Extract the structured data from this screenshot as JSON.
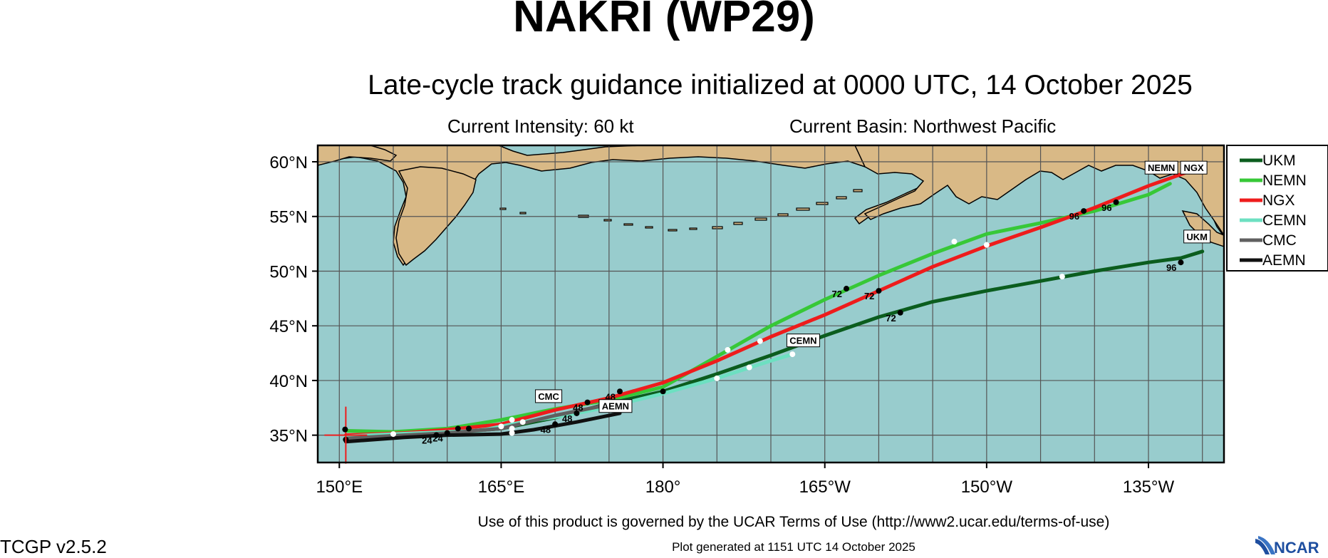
{
  "header": {
    "title": "NAKRI (WP29)",
    "subtitle": "Late-cycle track guidance initialized at 0000 UTC, 14 October 2025",
    "intensity": "Current Intensity: 60 kt",
    "basin": "Current Basin: Northwest Pacific"
  },
  "footer": {
    "terms": "Use of this product is governed by the UCAR Terms of Use (http://www2.ucar.edu/terms-of-use)",
    "generated": "Plot generated at 1151 UTC   14 October 2025",
    "version": "TCGP v2.5.2",
    "logo_text": "NCAR"
  },
  "colors": {
    "ocean": "#98cccd",
    "land": "#d9b986",
    "grid": "#555555"
  },
  "chart_data": {
    "type": "map",
    "lon_range": [
      148,
      232
    ],
    "lat_range": [
      32.5,
      61.5
    ],
    "lat_ticks": [
      {
        "value": 35,
        "label": "35°N"
      },
      {
        "value": 40,
        "label": "40°N"
      },
      {
        "value": 45,
        "label": "45°N"
      },
      {
        "value": 50,
        "label": "50°N"
      },
      {
        "value": 55,
        "label": "55°N"
      },
      {
        "value": 60,
        "label": "60°N"
      }
    ],
    "lon_ticks": [
      {
        "value": 150,
        "label": "150°E"
      },
      {
        "value": 165,
        "label": "165°E"
      },
      {
        "value": 180,
        "label": "180°"
      },
      {
        "value": 195,
        "label": "165°W"
      },
      {
        "value": 210,
        "label": "150°W"
      },
      {
        "value": 225,
        "label": "135°W"
      }
    ],
    "grid": true,
    "current_position": {
      "lon": 150.6,
      "lat": 35.0
    },
    "series": [
      {
        "name": "UKM",
        "color": "#0b5d1e",
        "points": [
          [
            150.6,
            34.6
          ],
          [
            156,
            34.9
          ],
          [
            160,
            35.2
          ],
          [
            165,
            35.6
          ],
          [
            170,
            36.6
          ],
          [
            175,
            37.9
          ],
          [
            180,
            39.0
          ],
          [
            185,
            40.6
          ],
          [
            190,
            42.3
          ],
          [
            195,
            44.1
          ],
          [
            200,
            45.8
          ],
          [
            205,
            47.2
          ],
          [
            210,
            48.2
          ],
          [
            215,
            49.1
          ],
          [
            220,
            50.0
          ],
          [
            225,
            50.8
          ],
          [
            228,
            51.2
          ],
          [
            230,
            51.8
          ]
        ],
        "markers": [
          {
            "lon": 150.6,
            "lat": 34.6,
            "style": "black"
          },
          {
            "lon": 160,
            "lat": 35.2,
            "style": "black",
            "label": "24"
          },
          {
            "lon": 166,
            "lat": 35.6,
            "style": "white"
          },
          {
            "lon": 180,
            "lat": 39.0,
            "style": "black"
          },
          {
            "lon": 188,
            "lat": 41.2,
            "style": "white"
          },
          {
            "lon": 192,
            "lat": 42.4,
            "style": "white"
          },
          {
            "lon": 202,
            "lat": 46.2,
            "style": "black",
            "label": "72"
          },
          {
            "lon": 217,
            "lat": 49.5,
            "style": "white"
          },
          {
            "lon": 228,
            "lat": 50.8,
            "style": "black",
            "label": "96"
          }
        ],
        "end_label": "UKM"
      },
      {
        "name": "NEMN",
        "color": "#37c837",
        "points": [
          [
            150.6,
            35.4
          ],
          [
            155,
            35.3
          ],
          [
            160,
            35.6
          ],
          [
            165,
            36.4
          ],
          [
            170,
            37.4
          ],
          [
            175,
            38.2
          ],
          [
            180,
            39.4
          ],
          [
            185,
            42.2
          ],
          [
            190,
            45.0
          ],
          [
            195,
            47.4
          ],
          [
            200,
            49.6
          ],
          [
            205,
            51.6
          ],
          [
            210,
            53.4
          ],
          [
            215,
            54.4
          ],
          [
            220,
            55.5
          ],
          [
            225,
            57.0
          ],
          [
            227,
            58.0
          ]
        ],
        "markers": [
          {
            "lon": 161,
            "lat": 35.6,
            "style": "black"
          },
          {
            "lon": 166,
            "lat": 36.4,
            "style": "white"
          },
          {
            "lon": 173,
            "lat": 38.0,
            "style": "black",
            "label": "48"
          },
          {
            "lon": 186,
            "lat": 42.8,
            "style": "white"
          },
          {
            "lon": 197,
            "lat": 48.4,
            "style": "black",
            "label": "72"
          },
          {
            "lon": 207,
            "lat": 52.7,
            "style": "white"
          },
          {
            "lon": 219,
            "lat": 55.5,
            "style": "black",
            "label": "96"
          }
        ],
        "end_label": "NEMN"
      },
      {
        "name": "NGX",
        "color": "#ee1c1c",
        "points": [
          [
            150.6,
            35.0
          ],
          [
            156,
            35.2
          ],
          [
            160,
            35.5
          ],
          [
            165,
            36.0
          ],
          [
            170,
            37.3
          ],
          [
            175,
            38.4
          ],
          [
            180,
            39.8
          ],
          [
            185,
            41.8
          ],
          [
            190,
            44.0
          ],
          [
            195,
            46.0
          ],
          [
            200,
            48.2
          ],
          [
            205,
            50.4
          ],
          [
            210,
            52.3
          ],
          [
            215,
            54.0
          ],
          [
            220,
            55.8
          ],
          [
            225,
            57.8
          ],
          [
            229,
            59.2
          ]
        ],
        "markers": [
          {
            "lon": 162,
            "lat": 35.6,
            "style": "black"
          },
          {
            "lon": 176,
            "lat": 39.0,
            "style": "black",
            "label": "48"
          },
          {
            "lon": 189,
            "lat": 43.6,
            "style": "white"
          },
          {
            "lon": 200,
            "lat": 48.2,
            "style": "black",
            "label": "72"
          },
          {
            "lon": 210,
            "lat": 52.4,
            "style": "white"
          },
          {
            "lon": 222,
            "lat": 56.3,
            "style": "black",
            "label": "96"
          }
        ],
        "end_label": "NGX"
      },
      {
        "name": "CEMN",
        "color": "#6de0c1",
        "points": [
          [
            150.6,
            34.9
          ],
          [
            155,
            35.1
          ],
          [
            160,
            35.3
          ],
          [
            163,
            35.4
          ],
          [
            167,
            36.2
          ],
          [
            171,
            36.8
          ],
          [
            175,
            37.6
          ],
          [
            180,
            38.8
          ],
          [
            185,
            40.2
          ],
          [
            190,
            41.8
          ],
          [
            192,
            42.4
          ]
        ],
        "markers": [
          {
            "lon": 155,
            "lat": 35.1,
            "style": "white"
          },
          {
            "lon": 167,
            "lat": 36.2,
            "style": "white"
          },
          {
            "lon": 185,
            "lat": 40.2,
            "style": "white"
          }
        ],
        "end_label": "CEMN"
      },
      {
        "name": "CMC",
        "color": "#606060",
        "points": [
          [
            150.6,
            34.7
          ],
          [
            156,
            35.0
          ],
          [
            160,
            35.2
          ],
          [
            165,
            35.6
          ],
          [
            170,
            36.8
          ],
          [
            175,
            37.8
          ]
        ],
        "markers": [
          {
            "lon": 165,
            "lat": 35.8,
            "style": "white"
          },
          {
            "lon": 172,
            "lat": 37.0,
            "style": "black",
            "label": "48"
          }
        ],
        "end_label": "CMC"
      },
      {
        "name": "AEMN",
        "color": "#101010",
        "points": [
          [
            150.6,
            34.4
          ],
          [
            156,
            34.8
          ],
          [
            160,
            35.0
          ],
          [
            165,
            35.1
          ],
          [
            168,
            35.5
          ],
          [
            172,
            36.2
          ],
          [
            176,
            37.0
          ]
        ],
        "markers": [
          {
            "lon": 159,
            "lat": 35.0,
            "style": "black",
            "label": "24"
          },
          {
            "lon": 166,
            "lat": 35.2,
            "style": "white"
          },
          {
            "lon": 170,
            "lat": 36.0,
            "style": "black",
            "label": "48"
          }
        ],
        "end_label": "AEMN"
      }
    ]
  }
}
